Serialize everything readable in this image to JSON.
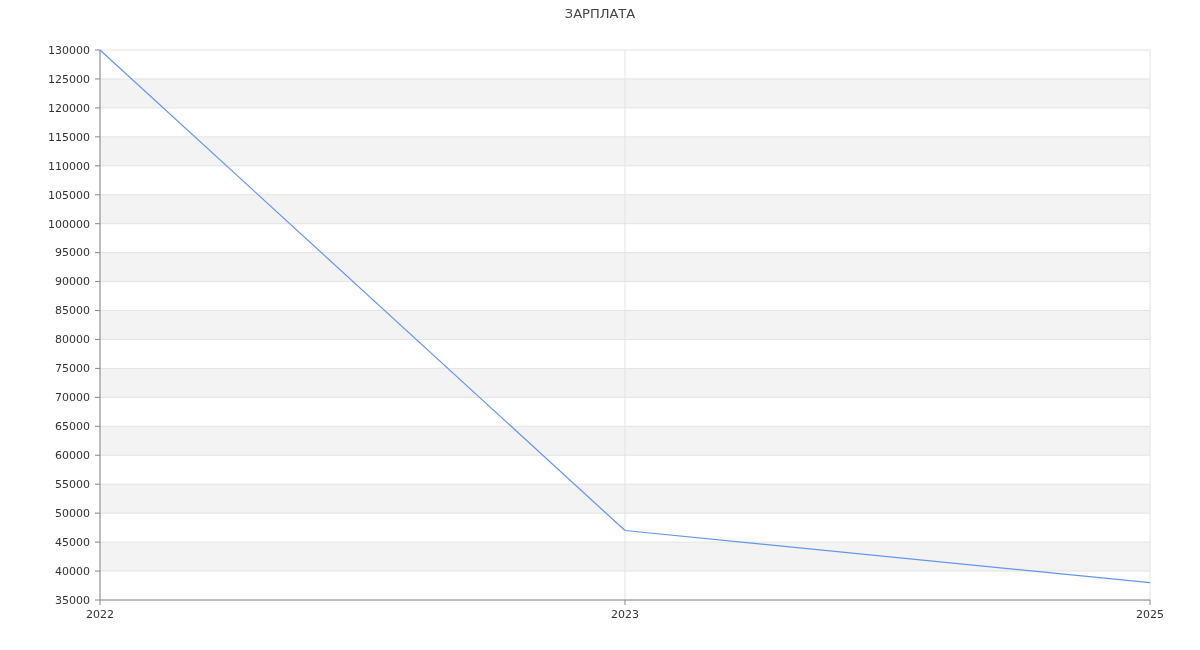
{
  "chart_data": {
    "type": "line",
    "title": "ЗАРПЛАТА",
    "categories": [
      "2022",
      "2023",
      "2025"
    ],
    "series": [
      {
        "color": "#6495ed",
        "values": [
          130000,
          47000,
          38000
        ]
      }
    ],
    "ylim": [
      35000,
      130000
    ],
    "yticks": [
      35000,
      40000,
      45000,
      50000,
      55000,
      60000,
      65000,
      70000,
      75000,
      80000,
      85000,
      90000,
      95000,
      100000,
      105000,
      110000,
      115000,
      120000,
      125000,
      130000
    ],
    "grid": true,
    "marker": "none",
    "line_style": "solid"
  }
}
